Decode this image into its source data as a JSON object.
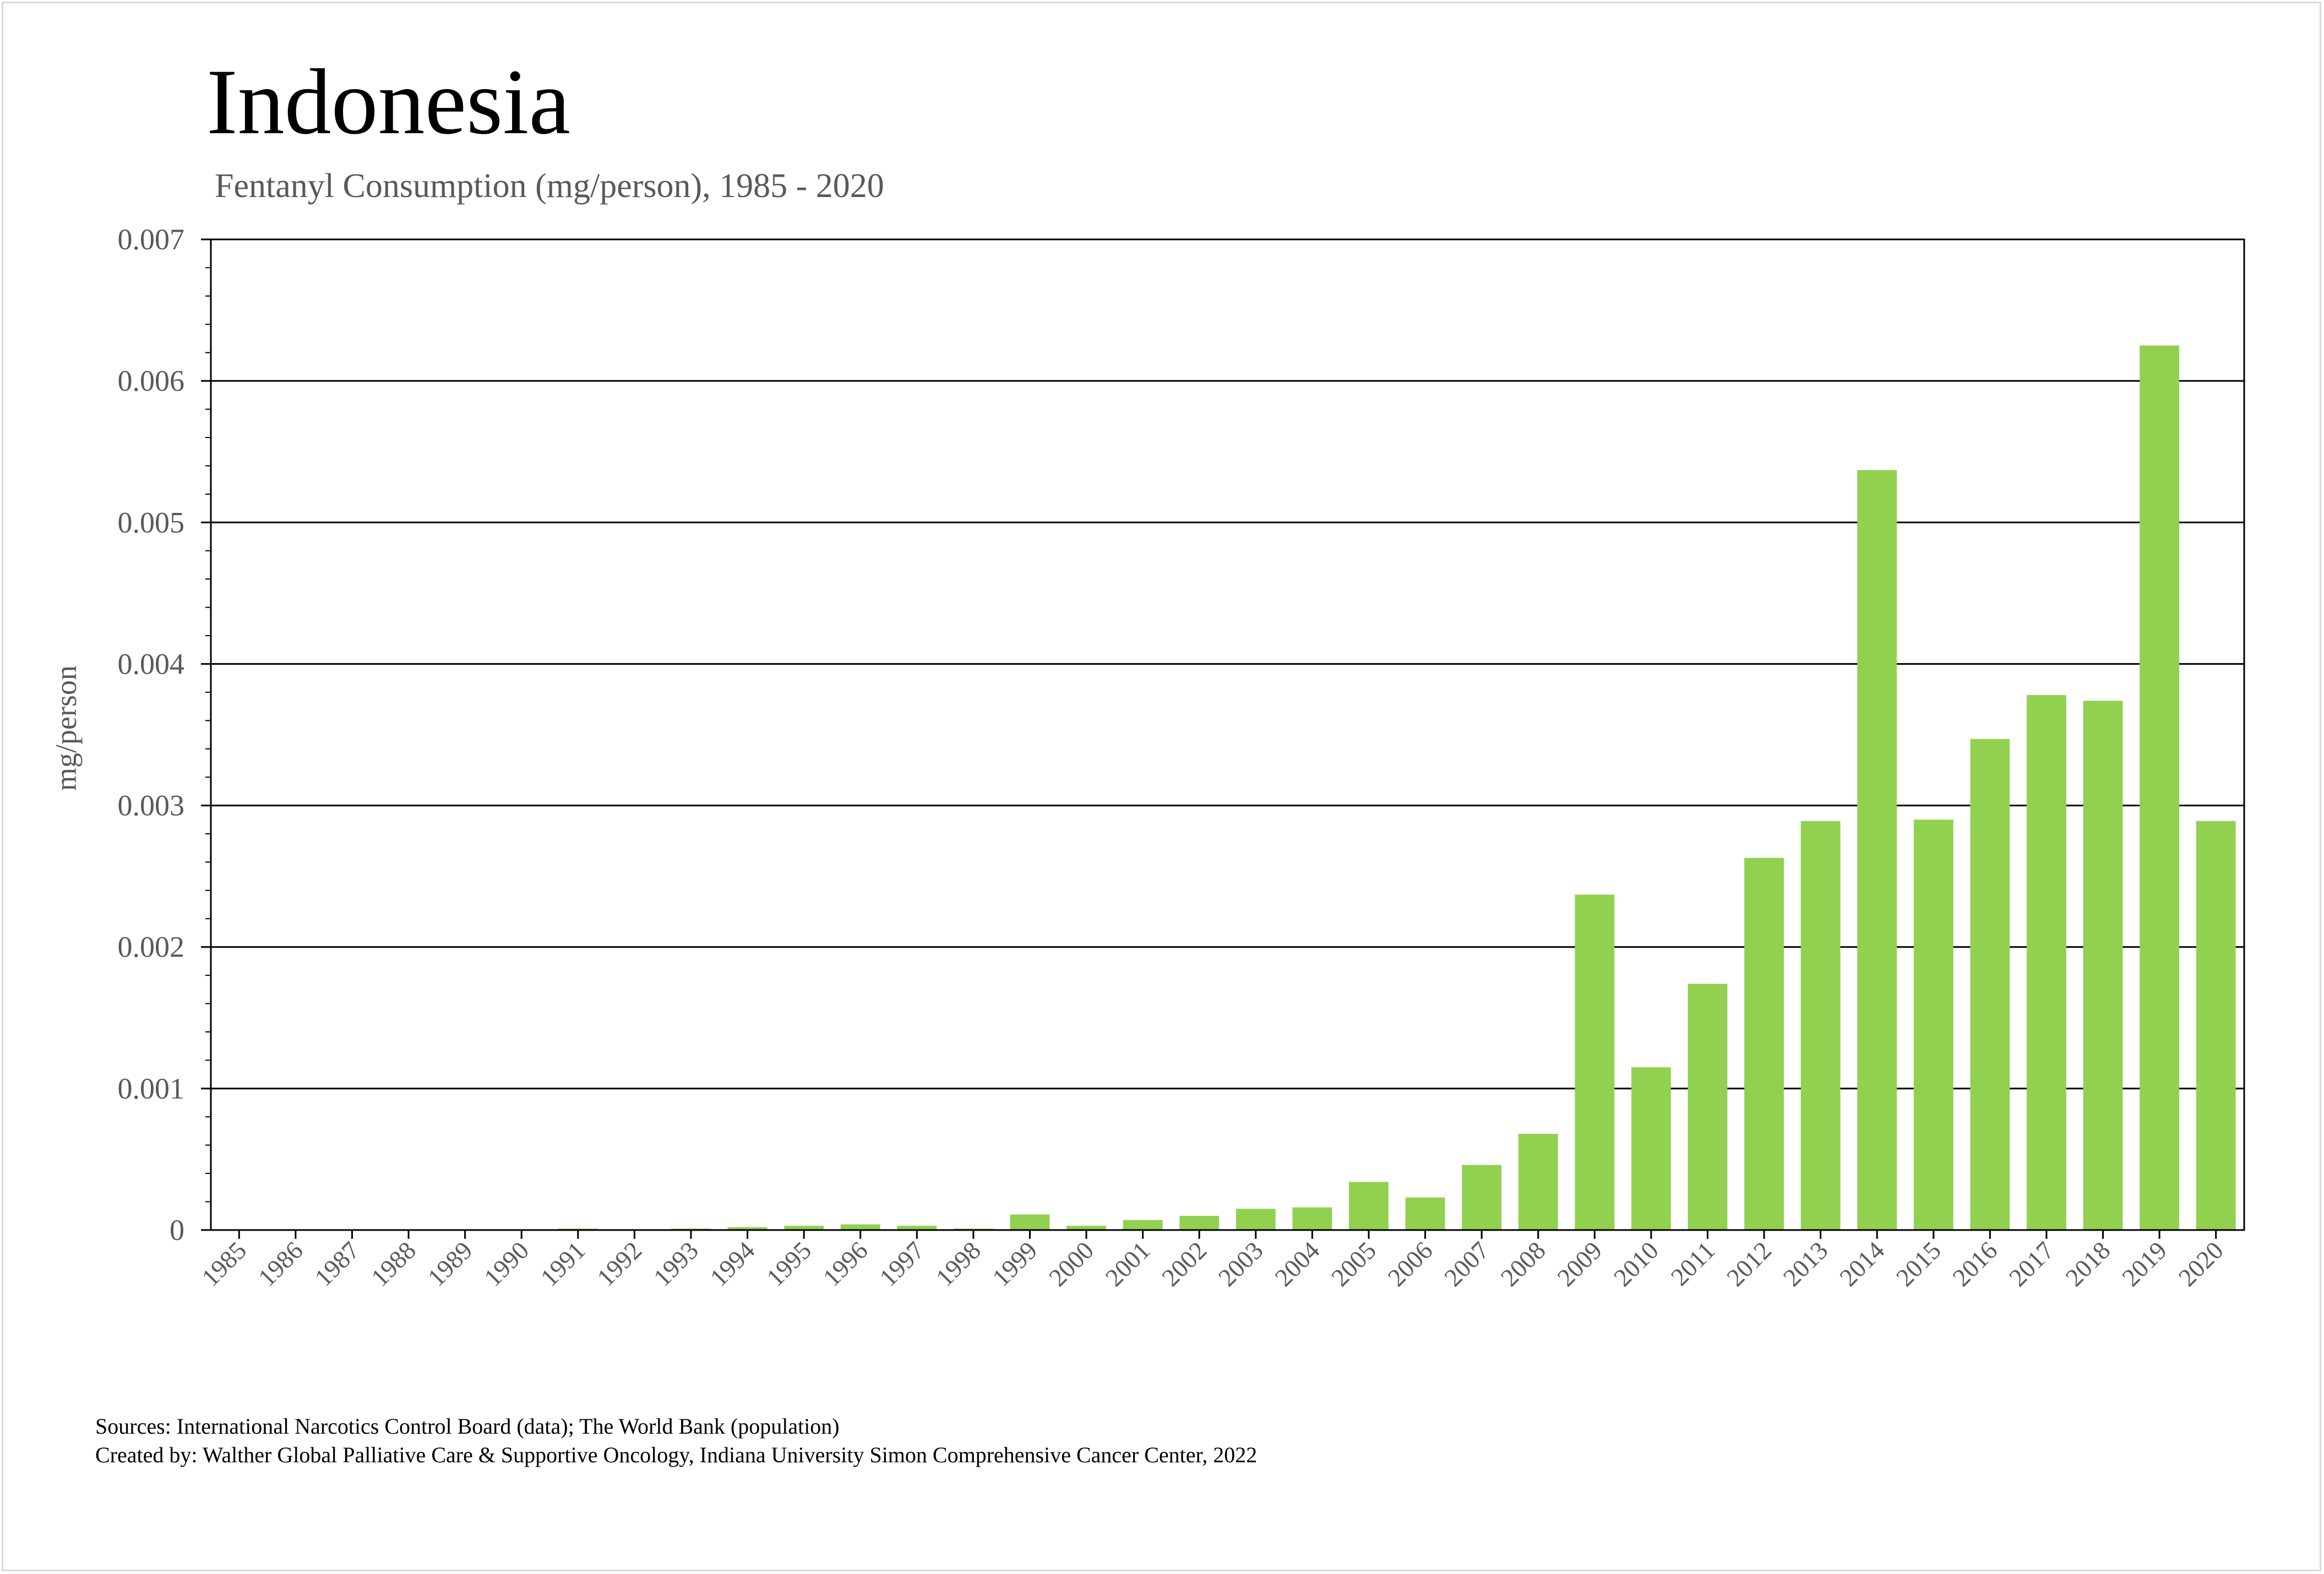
{
  "chart_data": {
    "type": "bar",
    "title": "Indonesia",
    "subtitle": "Fentanyl Consumption (mg/person), 1985 - 2020",
    "xlabel": "",
    "ylabel": "mg/person",
    "ylim": [
      0,
      0.007
    ],
    "yticks": [
      "0",
      "0.001",
      "0.002",
      "0.003",
      "0.004",
      "0.005",
      "0.006",
      "0.007"
    ],
    "grid": true,
    "bar_color": "#92d050",
    "categories": [
      "1985",
      "1986",
      "1987",
      "1988",
      "1989",
      "1990",
      "1991",
      "1992",
      "1993",
      "1994",
      "1995",
      "1996",
      "1997",
      "1998",
      "1999",
      "2000",
      "2001",
      "2002",
      "2003",
      "2004",
      "2005",
      "2006",
      "2007",
      "2008",
      "2009",
      "2010",
      "2011",
      "2012",
      "2013",
      "2014",
      "2015",
      "2016",
      "2017",
      "2018",
      "2019",
      "2020"
    ],
    "values": [
      0,
      0,
      0,
      0,
      0,
      0,
      1e-05,
      0,
      1e-05,
      2e-05,
      3e-05,
      4e-05,
      3e-05,
      1e-05,
      0.00011,
      3e-05,
      7e-05,
      0.0001,
      0.00015,
      0.00016,
      0.00034,
      0.00023,
      0.00046,
      0.00068,
      0.00237,
      0.00115,
      0.00174,
      0.00263,
      0.00289,
      0.00537,
      0.0029,
      0.00347,
      0.00378,
      0.00374,
      0.00625,
      0.00289
    ]
  },
  "footer": {
    "sources": "Sources: International Narcotics Control Board (data); The World Bank (population)",
    "created_by": "Created by: Walther Global Palliative Care & Supportive Oncology, Indiana University Simon Comprehensive Cancer Center, 2022"
  }
}
